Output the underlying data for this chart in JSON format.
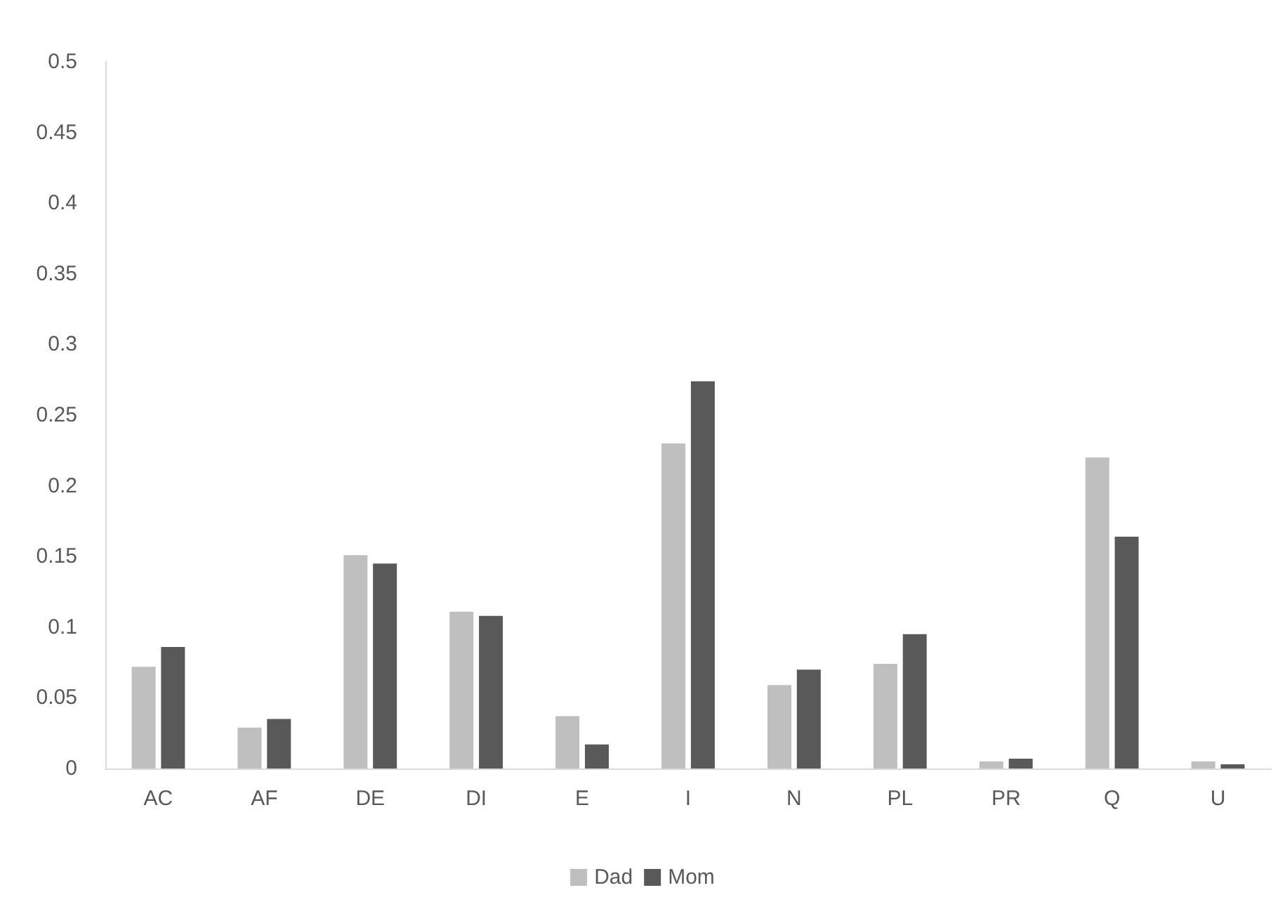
{
  "chart_data": {
    "type": "bar",
    "categories": [
      "AC",
      "AF",
      "DE",
      "DI",
      "E",
      "I",
      "N",
      "PL",
      "PR",
      "Q",
      "U"
    ],
    "series": [
      {
        "name": "Dad",
        "color": "#bfbfbf",
        "values": [
          0.072,
          0.029,
          0.151,
          0.111,
          0.037,
          0.23,
          0.059,
          0.074,
          0.005,
          0.22,
          0.005
        ]
      },
      {
        "name": "Mom",
        "color": "#595959",
        "values": [
          0.086,
          0.035,
          0.145,
          0.108,
          0.017,
          0.274,
          0.07,
          0.095,
          0.007,
          0.164,
          0.003
        ]
      }
    ],
    "ylim": [
      0,
      0.5
    ],
    "yticks": [
      0,
      0.05,
      0.1,
      0.15,
      0.2,
      0.25,
      0.3,
      0.35,
      0.4,
      0.45,
      0.5
    ],
    "grid": false,
    "legend": "bottom"
  }
}
